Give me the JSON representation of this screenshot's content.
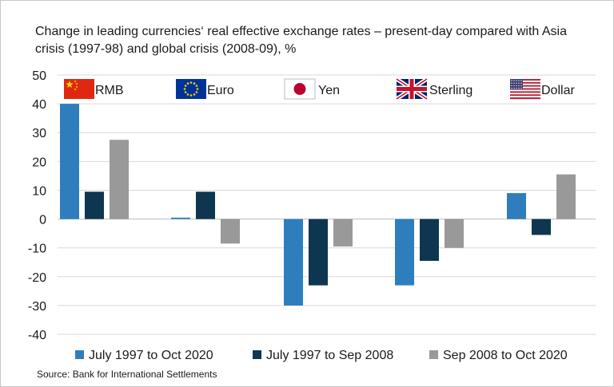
{
  "chart_data": {
    "type": "bar",
    "title": "Change in leading currencies‘ real effective exchange rates – present-day compared  with  Asia crisis (1997-98) and global crisis (2008-09), %",
    "categories": [
      "RMB",
      "Euro",
      "Yen",
      "Sterling",
      "Dollar"
    ],
    "series": [
      {
        "name": "July  1997 to Oct 2020",
        "color": "#2e7ebd",
        "values": [
          40,
          0.5,
          -30,
          -23,
          9
        ]
      },
      {
        "name": "July 1997 to Sep 2008",
        "color": "#0f3651",
        "values": [
          9.5,
          9.5,
          -23,
          -14.5,
          -5.5
        ]
      },
      {
        "name": "Sep 2008 to Oct 2020",
        "color": "#999999",
        "values": [
          27.5,
          -8.5,
          -9.5,
          -10,
          15.5
        ]
      }
    ],
    "ylim": [
      -40,
      50
    ],
    "yticks": [
      "50",
      "40",
      "30",
      "20",
      "10",
      "0",
      "-10",
      "-20",
      "-30",
      "-40"
    ],
    "grid": true,
    "legend": "bottom",
    "source": "Source: Bank for International Settlements"
  },
  "colors": {
    "gridline": "#d9d9d9",
    "zero_line": "#bfbfbf",
    "china_red": "#de2910",
    "china_gold": "#ffde00",
    "eu_blue": "#003399",
    "eu_gold": "#ffcc00",
    "japan_red": "#bc002d",
    "uk_blue": "#012169",
    "uk_red": "#c8102e",
    "us_red": "#b22234",
    "us_blue": "#3c3b6e"
  },
  "flag_icons": [
    "china-flag-icon",
    "eu-flag-icon",
    "japan-flag-icon",
    "uk-flag-icon",
    "us-flag-icon"
  ]
}
